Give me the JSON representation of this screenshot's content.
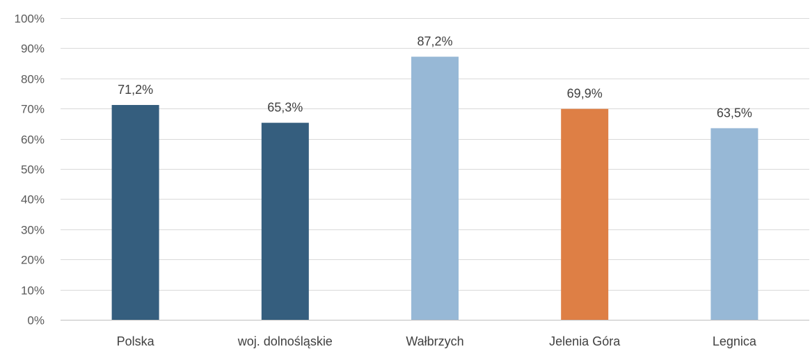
{
  "chart_data": {
    "type": "bar",
    "categories": [
      "Polska",
      "woj. dolnośląskie",
      "Wałbrzych",
      "Jelenia Góra",
      "Legnica"
    ],
    "values": [
      71.2,
      65.3,
      87.2,
      69.9,
      63.5
    ],
    "data_labels": [
      "71,2%",
      "65,3%",
      "87,2%",
      "69,9%",
      "63,5%"
    ],
    "bar_colors": [
      "#355e7e",
      "#355e7e",
      "#97b8d6",
      "#de7f45",
      "#97b8d6"
    ],
    "ylim": [
      0,
      100
    ],
    "yticks": [
      0,
      10,
      20,
      30,
      40,
      50,
      60,
      70,
      80,
      90,
      100
    ],
    "ytick_labels": [
      "0%",
      "10%",
      "20%",
      "30%",
      "40%",
      "50%",
      "60%",
      "70%",
      "80%",
      "90%",
      "100%"
    ],
    "grid": true,
    "legend": "none",
    "title": "",
    "xlabel": "",
    "ylabel": ""
  }
}
